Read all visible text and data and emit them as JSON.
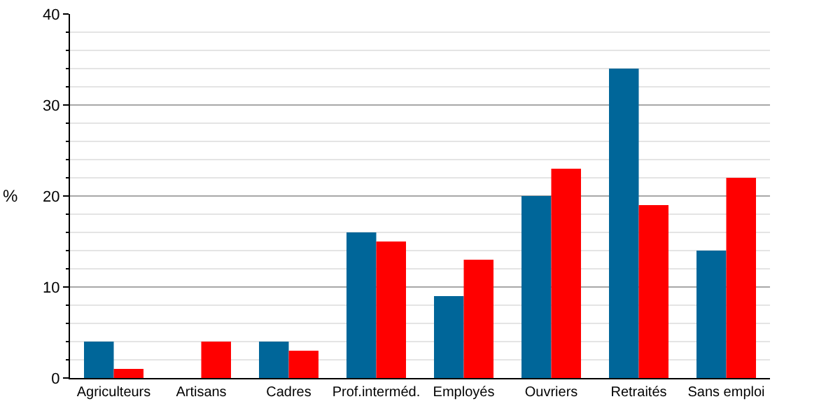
{
  "chart_data": {
    "type": "bar",
    "ylabel": "%",
    "categories": [
      "Agriculteurs",
      "Artisans",
      "Cadres",
      "Prof.interméd.",
      "Employés",
      "Ouvriers",
      "Retraités",
      "Sans emploi"
    ],
    "series": [
      {
        "color": "#006699",
        "values": [
          4,
          0,
          4,
          16,
          9,
          20,
          34,
          14
        ]
      },
      {
        "color": "#ff0000",
        "values": [
          1,
          4,
          3,
          15,
          13,
          23,
          19,
          22
        ]
      }
    ],
    "ylim": [
      0,
      40
    ],
    "yticks": [
      0,
      {
        "value": 2,
        "label": null
      },
      {
        "value": 4,
        "label": null
      },
      {
        "value": 6,
        "label": null
      },
      {
        "value": 8,
        "label": null
      },
      10,
      {
        "value": 12,
        "label": null
      },
      {
        "value": 14,
        "label": null
      },
      {
        "value": 16,
        "label": null
      },
      {
        "value": 18,
        "label": null
      },
      20,
      {
        "value": 22,
        "label": null
      },
      {
        "value": 24,
        "label": null
      },
      {
        "value": 26,
        "label": null
      },
      {
        "value": 28,
        "label": null
      },
      30,
      {
        "value": 32,
        "label": null
      },
      {
        "value": 34,
        "label": null
      },
      {
        "value": 36,
        "label": null
      },
      {
        "value": 38,
        "label": null
      },
      40
    ],
    "grid": "y"
  }
}
